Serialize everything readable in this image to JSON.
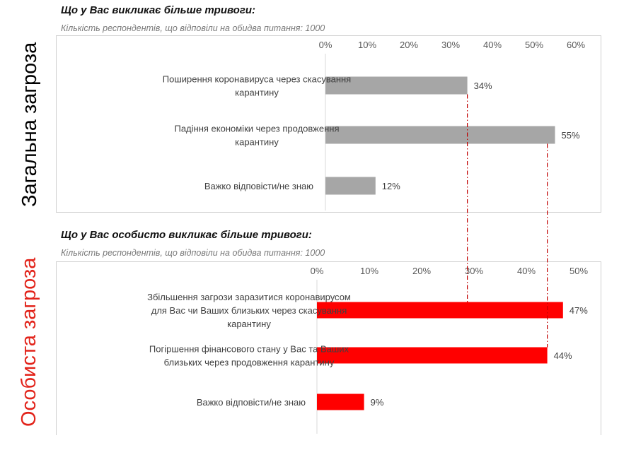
{
  "side_labels": {
    "general": "Загальна загроза",
    "personal": "Особиста загроза"
  },
  "colors": {
    "general_bar": "#a6a6a6",
    "personal_bar": "#ff0000",
    "side_general": "#000000",
    "side_personal": "#e2231a",
    "guide_line": "#c00000"
  },
  "chart_data": [
    {
      "type": "bar",
      "orientation": "horizontal",
      "title": "Що у Вас викликає більше тривоги:",
      "subtitle": "Кількість респондентів, що відповіли на обидва питання: 1000",
      "categories": [
        "Поширення коронавируса через скасування карантину",
        "Падіння економіки через продовження карантину",
        "Важко відповісти/не знаю"
      ],
      "values": [
        34,
        55,
        12
      ],
      "value_labels": [
        "34%",
        "55%",
        "12%"
      ],
      "xlim": [
        0,
        60
      ],
      "ticks": [
        "0%",
        "10%",
        "20%",
        "30%",
        "40%",
        "50%",
        "60%"
      ],
      "axis_position": "top",
      "grid": false,
      "color": "#a6a6a6"
    },
    {
      "type": "bar",
      "orientation": "horizontal",
      "title": "Що у Вас особисто викликає більше тривоги:",
      "subtitle": "Кількість респондентів, що відповіли на обидва питання: 1000",
      "categories": [
        "Збільшення загрози заразитися коронавирусом для Вас чи Ваших близьких через скасування карантину",
        "Погіршення фінансового стану у Вас та Ваших близьких через продовження карантину",
        "Важко відповісти/не знаю"
      ],
      "values": [
        47,
        44,
        9
      ],
      "value_labels": [
        "47%",
        "44%",
        "9%"
      ],
      "xlim": [
        0,
        50
      ],
      "ticks": [
        "0%",
        "10%",
        "20%",
        "30%",
        "40%",
        "50%"
      ],
      "axis_position": "top",
      "grid": false,
      "color": "#ff0000"
    }
  ]
}
